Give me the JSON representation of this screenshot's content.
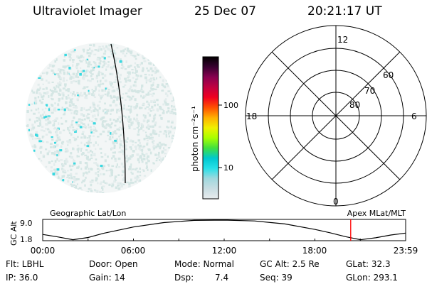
{
  "header": {
    "instrument": "Ultraviolet Imager",
    "date": "25 Dec 07",
    "time": "20:21:17 UT"
  },
  "colorbar": {
    "label": "photon cm⁻²s⁻¹",
    "ticks": [
      "100",
      "10"
    ]
  },
  "polar_plot": {
    "mlt_labels": [
      "12",
      "18",
      "6",
      "0"
    ],
    "lat_labels": [
      "60",
      "70",
      "80"
    ]
  },
  "orbit_panel": {
    "left_title": "Geographic Lat/Lon",
    "right_title": "Apex MLat/MLT",
    "ylabel": "GC Alt",
    "yticks": [
      "9.0",
      "1.8"
    ],
    "xticks": [
      "00:00",
      "06:00",
      "12:00",
      "18:00",
      "23:59"
    ]
  },
  "info": {
    "flt": "Flt: LBHL",
    "ip": "IP: 36.0",
    "door": "Door: Open",
    "gain": "Gain: 14",
    "mode": "Mode: Normal",
    "dsp_label": "Dsp:",
    "dsp_value": "7.4",
    "gc_alt": "GC Alt: 2.5 Re",
    "seq": "Seq: 39",
    "glat": "GLat:  32.3",
    "glon": "GLon: 293.1"
  },
  "colors": {
    "colorbar": [
      "#e8ecee",
      "#c8dde2",
      "#a0d8de",
      "#28e0e8",
      "#00c8d0",
      "#40e040",
      "#a8ff00",
      "#f0f000",
      "#ffb000",
      "#ff5000",
      "#f00020",
      "#c00040",
      "#880050",
      "#380030",
      "#000000"
    ],
    "speckle_light": "#d4e6e4",
    "speckle_cyan": "#3ad8e0",
    "marker": "#ff0000"
  },
  "chart_data": [
    {
      "type": "heatmap",
      "title": "Ultraviolet Imager",
      "colorbar_label": "photon cm⁻²s⁻¹",
      "colorbar_ticks": [
        10,
        100
      ],
      "scale": "log"
    },
    {
      "type": "line",
      "xlabel": "",
      "ylabel": "GC Alt",
      "x_ticks": [
        "00:00",
        "06:00",
        "12:00",
        "18:00",
        "23:59"
      ],
      "ylim": [
        1.8,
        9.0
      ],
      "x": [
        0,
        1,
        2,
        3,
        4,
        6,
        8,
        10,
        12,
        14,
        16,
        18,
        19,
        20,
        21,
        22,
        23,
        23.98
      ],
      "values": [
        3.8,
        2.9,
        1.9,
        2.7,
        4.2,
        6.5,
        8.1,
        8.9,
        9.0,
        8.7,
        7.6,
        5.6,
        4.4,
        3.0,
        1.9,
        2.6,
        3.6,
        4.3
      ],
      "current_time_marker": 20.35
    }
  ]
}
